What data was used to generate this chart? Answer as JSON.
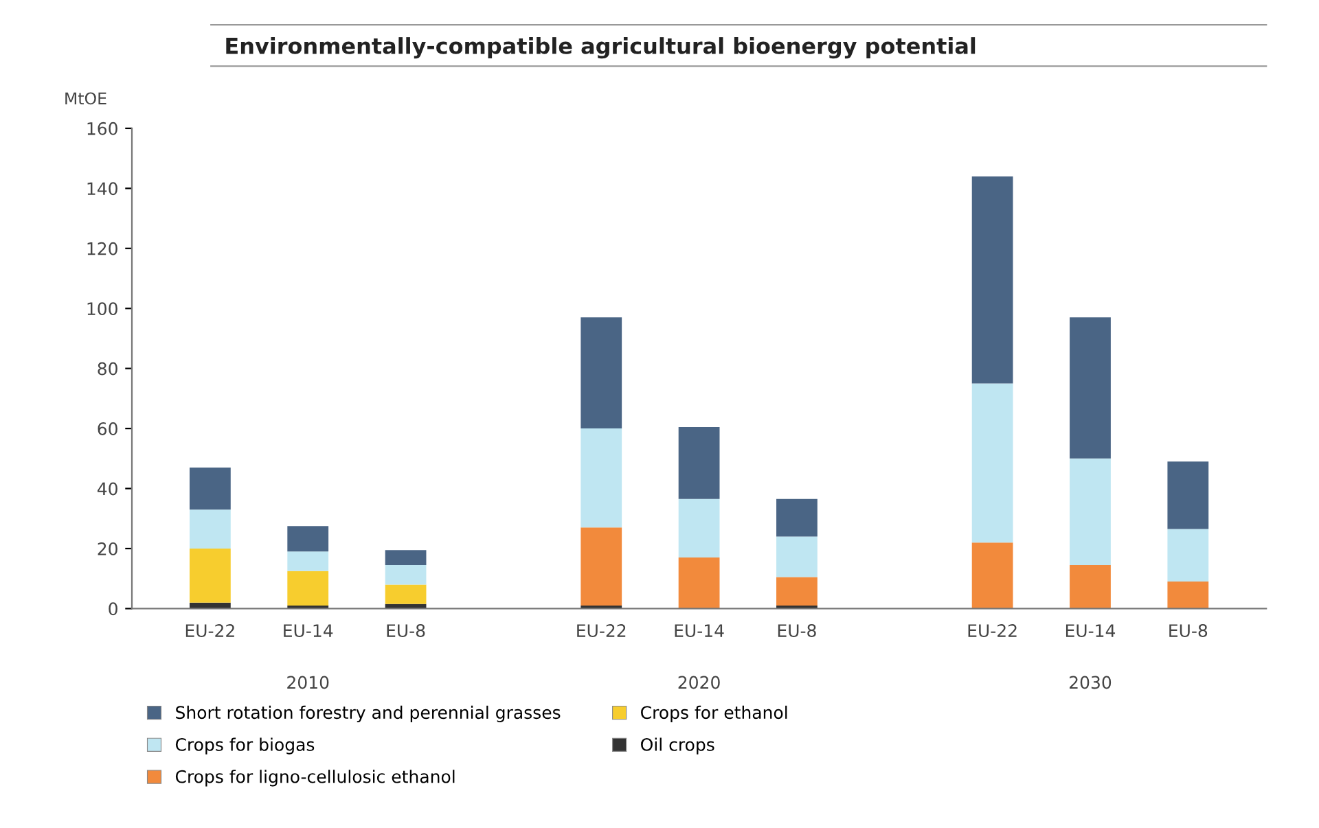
{
  "chart_data": {
    "type": "bar",
    "title": "Environmentally-compatible agricultural bioenergy potential",
    "ylabel": "MtOE",
    "categories": [
      "EU-22",
      "EU-14",
      "EU-8",
      null,
      "EU-22",
      "EU-14",
      "EU-8",
      null,
      "EU-22",
      "EU-14",
      "EU-8"
    ],
    "annotations": [
      "2010",
      "2020",
      "2030"
    ],
    "stacked": true,
    "series": [
      {
        "name": "Oil crops",
        "color": "#333333",
        "values": [
          2,
          1,
          1.5,
          null,
          1,
          0,
          1,
          null,
          0,
          0,
          0
        ]
      },
      {
        "name": "Crops for ethanol",
        "color": "#f7cd2e",
        "values": [
          18,
          11.5,
          6.5,
          null,
          0,
          0,
          0,
          null,
          0,
          0,
          0
        ]
      },
      {
        "name": "Crops for ligno-cellulosic ethanol",
        "color": "#f28a3c",
        "values": [
          0,
          0,
          0,
          null,
          26,
          17,
          9.5,
          null,
          22,
          14.5,
          9
        ]
      },
      {
        "name": "Crops for biogas",
        "color": "#bfe6f2",
        "values": [
          13,
          6.5,
          6.5,
          null,
          33,
          19.5,
          13.5,
          null,
          53,
          35.5,
          17.5
        ]
      },
      {
        "name": "Short rotation forestry and perennial grasses",
        "color": "#4a6585",
        "values": [
          14,
          8.5,
          5,
          null,
          37,
          24,
          12.5,
          null,
          69,
          47,
          22.5
        ]
      }
    ],
    "ylim": [
      0,
      160
    ],
    "yticks": [
      0,
      20,
      40,
      60,
      80,
      100,
      120,
      140,
      160
    ],
    "grid": false,
    "legend": "bottom left"
  }
}
